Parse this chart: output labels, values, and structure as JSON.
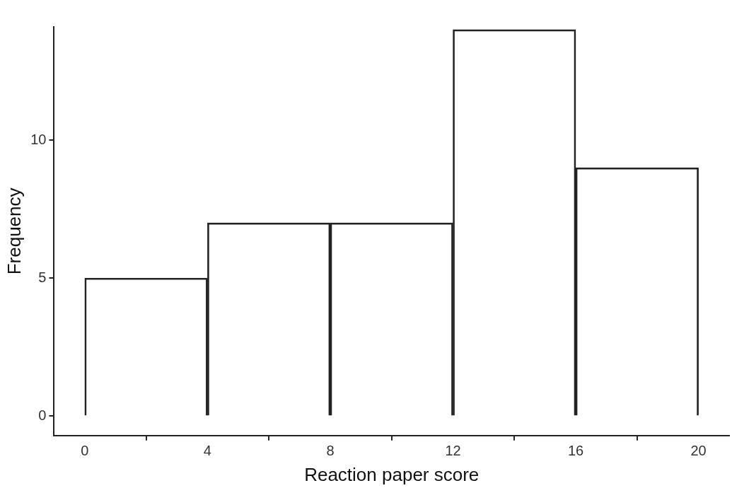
{
  "chart_data": {
    "type": "histogram",
    "xlabel": "Reaction paper score",
    "ylabel": "Frequency",
    "bins": [
      0,
      4,
      8,
      12,
      16,
      20
    ],
    "values": [
      5,
      7,
      7,
      14,
      9
    ],
    "color": "#222222",
    "xlim": [
      -1,
      21
    ],
    "xticks": [
      0,
      4,
      8,
      12,
      16,
      20
    ],
    "ylim": [
      -0.7,
      14.1
    ],
    "yticks": [
      0,
      5,
      10
    ],
    "grid": false,
    "legend": false
  }
}
